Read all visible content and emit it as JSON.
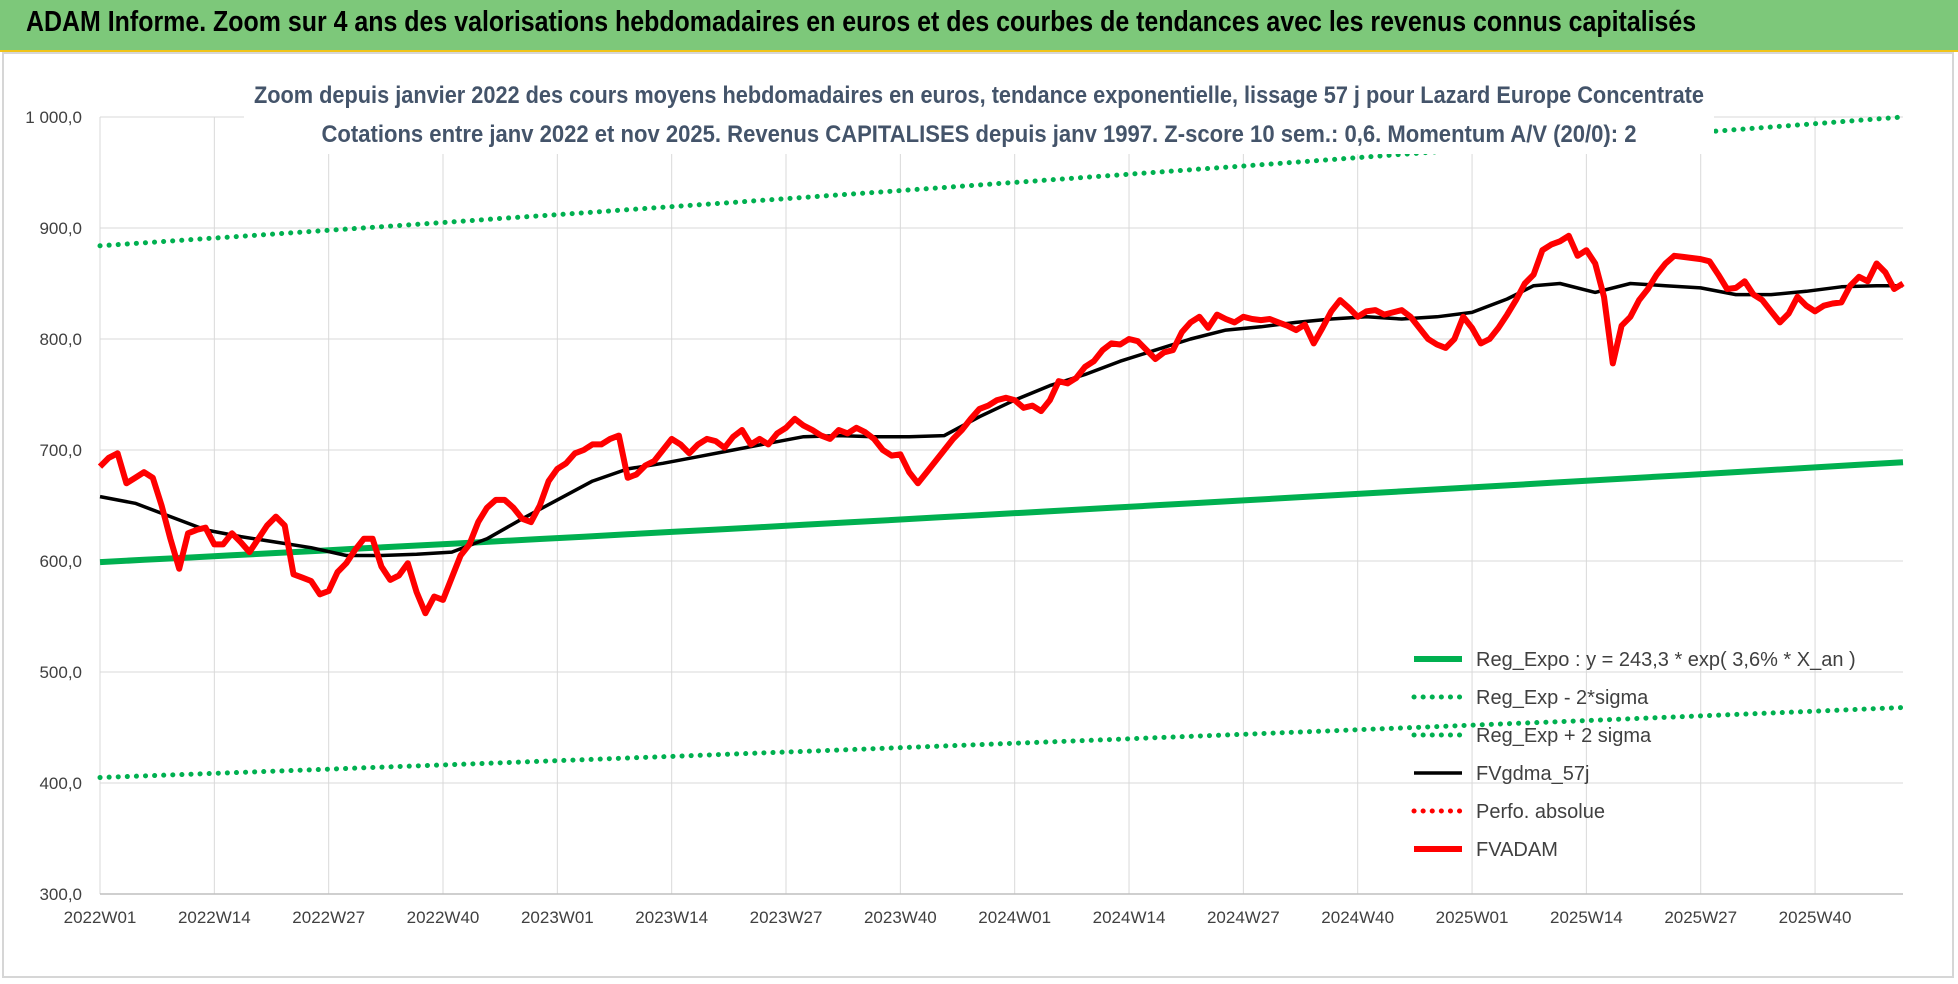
{
  "header": {
    "title": "ADAM Informe. Zoom sur 4 ans des valorisations hebdomadaires en euros et des courbes de tendances avec les revenus connus capitalisés"
  },
  "colors": {
    "header_bg": "#7dc87a",
    "green": "#00b050",
    "red": "#ff0000",
    "black": "#000000",
    "grid": "#d9d9d9",
    "subtitle": "#44546a"
  },
  "chart_data": {
    "type": "line",
    "title_line1": "Zoom depuis janvier 2022 des cours moyens hebdomadaires en euros, tendance exponentielle, lissage 57 j pour Lazard Europe Concentrate",
    "title_line2": "Cotations entre janv 2022 et nov 2025. Revenus CAPITALISES depuis janv 1997. Z-score 10 sem.: 0,6. Momentum A/V (20/0): 2",
    "ylim": [
      300,
      1000
    ],
    "y_ticks": [
      "1 000,0",
      "900,0",
      "800,0",
      "700,0",
      "600,0",
      "500,0",
      "400,0",
      "300,0"
    ],
    "y_tick_values": [
      1000,
      900,
      800,
      700,
      600,
      500,
      400,
      300
    ],
    "x_ticks": [
      "2022W01",
      "2022W14",
      "2022W27",
      "2022W40",
      "2023W01",
      "2023W14",
      "2023W27",
      "2023W40",
      "2024W01",
      "2024W14",
      "2024W27",
      "2024W40",
      "2025W01",
      "2025W14",
      "2025W27",
      "2025W40"
    ],
    "x_tick_index": [
      0,
      13,
      26,
      39,
      52,
      65,
      78,
      91,
      104,
      117,
      130,
      143,
      156,
      169,
      182,
      195
    ],
    "n_weeks": 206,
    "grid": true,
    "legend_position": "bottom-right",
    "series": [
      {
        "name": "Reg_Expo : y = 243,3 * exp( 3,6% *  X_an )",
        "style": "solid",
        "color": "#00b050",
        "start": 599,
        "end": 689
      },
      {
        "name": "Reg_Exp - 2*sigma",
        "style": "dotted",
        "color": "#00b050",
        "start": 405,
        "end": 468
      },
      {
        "name": "Reg_Exp + 2 sigma",
        "style": "dotted",
        "color": "#00b050",
        "start": 884,
        "end": 1000
      },
      {
        "name": "FVgdma_57j",
        "style": "solid",
        "color": "#000000",
        "points": [
          [
            0,
            658
          ],
          [
            4,
            652
          ],
          [
            8,
            640
          ],
          [
            12,
            628
          ],
          [
            16,
            622
          ],
          [
            20,
            617
          ],
          [
            24,
            612
          ],
          [
            28,
            605
          ],
          [
            32,
            605
          ],
          [
            36,
            606
          ],
          [
            40,
            608
          ],
          [
            44,
            620
          ],
          [
            48,
            638
          ],
          [
            52,
            655
          ],
          [
            56,
            672
          ],
          [
            60,
            683
          ],
          [
            64,
            688
          ],
          [
            68,
            694
          ],
          [
            72,
            700
          ],
          [
            76,
            706
          ],
          [
            80,
            712
          ],
          [
            84,
            713
          ],
          [
            88,
            712
          ],
          [
            92,
            712
          ],
          [
            96,
            713
          ],
          [
            100,
            730
          ],
          [
            104,
            745
          ],
          [
            108,
            758
          ],
          [
            112,
            768
          ],
          [
            116,
            780
          ],
          [
            120,
            790
          ],
          [
            124,
            800
          ],
          [
            128,
            808
          ],
          [
            132,
            811
          ],
          [
            136,
            815
          ],
          [
            140,
            818
          ],
          [
            144,
            820
          ],
          [
            148,
            818
          ],
          [
            152,
            820
          ],
          [
            156,
            824
          ],
          [
            160,
            836
          ],
          [
            163,
            848
          ],
          [
            166,
            850
          ],
          [
            170,
            842
          ],
          [
            174,
            850
          ],
          [
            178,
            848
          ],
          [
            182,
            846
          ],
          [
            186,
            840
          ],
          [
            190,
            840
          ],
          [
            194,
            843
          ],
          [
            198,
            847
          ],
          [
            202,
            848
          ],
          [
            205,
            848
          ]
        ]
      },
      {
        "name": "Perfo. absolue",
        "style": "dotted",
        "color": "#ff0000",
        "points": []
      },
      {
        "name": "FVADAM",
        "style": "solid",
        "color": "#ff0000",
        "points": [
          [
            0,
            685
          ],
          [
            1,
            693
          ],
          [
            2,
            697
          ],
          [
            3,
            670
          ],
          [
            4,
            675
          ],
          [
            5,
            680
          ],
          [
            6,
            675
          ],
          [
            7,
            650
          ],
          [
            8,
            620
          ],
          [
            9,
            593
          ],
          [
            10,
            625
          ],
          [
            11,
            628
          ],
          [
            12,
            630
          ],
          [
            13,
            615
          ],
          [
            14,
            615
          ],
          [
            15,
            625
          ],
          [
            16,
            617
          ],
          [
            17,
            608
          ],
          [
            18,
            620
          ],
          [
            19,
            632
          ],
          [
            20,
            640
          ],
          [
            21,
            632
          ],
          [
            22,
            588
          ],
          [
            23,
            585
          ],
          [
            24,
            582
          ],
          [
            25,
            570
          ],
          [
            26,
            573
          ],
          [
            27,
            590
          ],
          [
            28,
            598
          ],
          [
            29,
            610
          ],
          [
            30,
            620
          ],
          [
            31,
            620
          ],
          [
            32,
            595
          ],
          [
            33,
            583
          ],
          [
            34,
            587
          ],
          [
            35,
            598
          ],
          [
            36,
            572
          ],
          [
            37,
            553
          ],
          [
            38,
            568
          ],
          [
            39,
            565
          ],
          [
            40,
            585
          ],
          [
            41,
            605
          ],
          [
            42,
            615
          ],
          [
            43,
            635
          ],
          [
            44,
            648
          ],
          [
            45,
            655
          ],
          [
            46,
            655
          ],
          [
            47,
            648
          ],
          [
            48,
            638
          ],
          [
            49,
            635
          ],
          [
            50,
            650
          ],
          [
            51,
            672
          ],
          [
            52,
            683
          ],
          [
            53,
            688
          ],
          [
            54,
            697
          ],
          [
            55,
            700
          ],
          [
            56,
            705
          ],
          [
            57,
            705
          ],
          [
            58,
            710
          ],
          [
            59,
            713
          ],
          [
            60,
            675
          ],
          [
            61,
            678
          ],
          [
            62,
            686
          ],
          [
            63,
            690
          ],
          [
            64,
            700
          ],
          [
            65,
            710
          ],
          [
            66,
            705
          ],
          [
            67,
            697
          ],
          [
            68,
            705
          ],
          [
            69,
            710
          ],
          [
            70,
            708
          ],
          [
            71,
            702
          ],
          [
            72,
            712
          ],
          [
            73,
            718
          ],
          [
            74,
            705
          ],
          [
            75,
            710
          ],
          [
            76,
            705
          ],
          [
            77,
            715
          ],
          [
            78,
            720
          ],
          [
            79,
            728
          ],
          [
            80,
            722
          ],
          [
            81,
            718
          ],
          [
            82,
            713
          ],
          [
            83,
            710
          ],
          [
            84,
            718
          ],
          [
            85,
            715
          ],
          [
            86,
            720
          ],
          [
            87,
            716
          ],
          [
            88,
            710
          ],
          [
            89,
            700
          ],
          [
            90,
            695
          ],
          [
            91,
            696
          ],
          [
            92,
            680
          ],
          [
            93,
            670
          ],
          [
            94,
            680
          ],
          [
            95,
            690
          ],
          [
            96,
            700
          ],
          [
            97,
            710
          ],
          [
            98,
            718
          ],
          [
            99,
            728
          ],
          [
            100,
            737
          ],
          [
            101,
            740
          ],
          [
            102,
            745
          ],
          [
            103,
            747
          ],
          [
            104,
            745
          ],
          [
            105,
            738
          ],
          [
            106,
            740
          ],
          [
            107,
            735
          ],
          [
            108,
            745
          ],
          [
            109,
            762
          ],
          [
            110,
            760
          ],
          [
            111,
            765
          ],
          [
            112,
            775
          ],
          [
            113,
            780
          ],
          [
            114,
            790
          ],
          [
            115,
            796
          ],
          [
            116,
            795
          ],
          [
            117,
            800
          ],
          [
            118,
            798
          ],
          [
            119,
            790
          ],
          [
            120,
            782
          ],
          [
            121,
            788
          ],
          [
            122,
            790
          ],
          [
            123,
            806
          ],
          [
            124,
            815
          ],
          [
            125,
            820
          ],
          [
            126,
            810
          ],
          [
            127,
            822
          ],
          [
            128,
            818
          ],
          [
            129,
            815
          ],
          [
            130,
            820
          ],
          [
            131,
            818
          ],
          [
            132,
            817
          ],
          [
            133,
            818
          ],
          [
            134,
            815
          ],
          [
            135,
            812
          ],
          [
            136,
            808
          ],
          [
            137,
            813
          ],
          [
            138,
            796
          ],
          [
            139,
            810
          ],
          [
            140,
            825
          ],
          [
            141,
            835
          ],
          [
            142,
            828
          ],
          [
            143,
            820
          ],
          [
            144,
            825
          ],
          [
            145,
            826
          ],
          [
            146,
            822
          ],
          [
            147,
            824
          ],
          [
            148,
            826
          ],
          [
            149,
            820
          ],
          [
            150,
            810
          ],
          [
            151,
            800
          ],
          [
            152,
            795
          ],
          [
            153,
            792
          ],
          [
            154,
            800
          ],
          [
            155,
            820
          ],
          [
            156,
            810
          ],
          [
            157,
            796
          ],
          [
            158,
            800
          ],
          [
            159,
            810
          ],
          [
            160,
            822
          ],
          [
            161,
            835
          ],
          [
            162,
            850
          ],
          [
            163,
            858
          ],
          [
            164,
            880
          ],
          [
            165,
            885
          ],
          [
            166,
            888
          ],
          [
            167,
            893
          ],
          [
            168,
            875
          ],
          [
            169,
            880
          ],
          [
            170,
            868
          ],
          [
            171,
            838
          ],
          [
            172,
            778
          ],
          [
            173,
            812
          ],
          [
            174,
            820
          ],
          [
            175,
            835
          ],
          [
            176,
            845
          ],
          [
            177,
            858
          ],
          [
            178,
            868
          ],
          [
            179,
            875
          ],
          [
            180,
            874
          ],
          [
            181,
            873
          ],
          [
            182,
            872
          ],
          [
            183,
            870
          ],
          [
            184,
            858
          ],
          [
            185,
            845
          ],
          [
            186,
            846
          ],
          [
            187,
            852
          ],
          [
            188,
            840
          ],
          [
            189,
            835
          ],
          [
            190,
            825
          ],
          [
            191,
            815
          ],
          [
            192,
            823
          ],
          [
            193,
            838
          ],
          [
            194,
            830
          ],
          [
            195,
            825
          ],
          [
            196,
            830
          ],
          [
            197,
            832
          ],
          [
            198,
            833
          ],
          [
            199,
            848
          ],
          [
            200,
            856
          ],
          [
            201,
            852
          ],
          [
            202,
            868
          ],
          [
            203,
            860
          ],
          [
            204,
            845
          ],
          [
            205,
            850
          ]
        ]
      }
    ]
  }
}
